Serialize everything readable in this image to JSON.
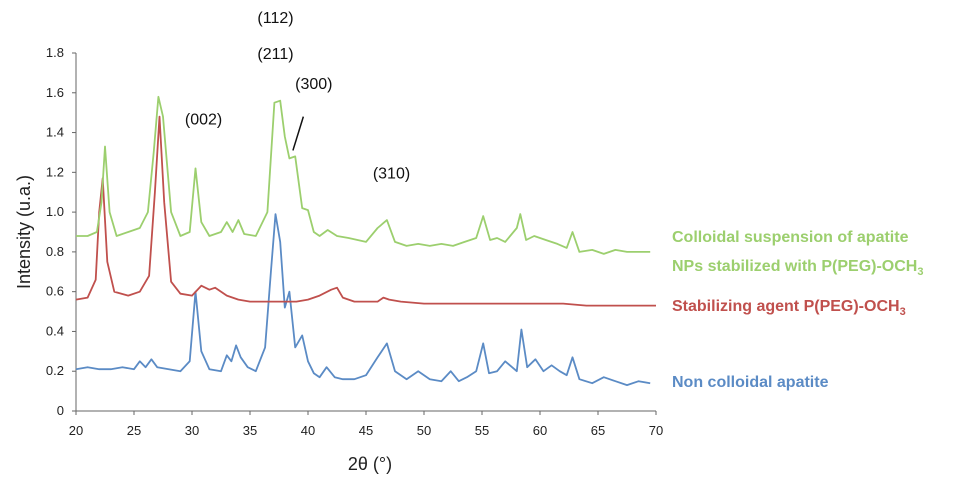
{
  "chart_data": {
    "type": "line",
    "xlabel": "2θ (°)",
    "ylabel": "Intensity (u.a.)",
    "xlim": [
      20,
      70
    ],
    "ylim": [
      0,
      1.8
    ],
    "xticks": [
      "20",
      "25",
      "30",
      "35",
      "40",
      "45",
      "50",
      "55",
      "60",
      "65",
      "70"
    ],
    "yticks": [
      "0",
      "0.2",
      "0.4",
      "0.6",
      "0.8",
      "1.0",
      "1.2",
      "1.4",
      "1.6",
      "1.8"
    ],
    "grid": false,
    "legend_position": "right",
    "series": [
      {
        "name": "Colloidal suspension of apatite NPs stabilized with P(PEG)-OCH3",
        "label_line1": "Colloidal suspension of apatite",
        "label_line2_prefix": "NPs stabilized with P(PEG)-OCH",
        "label_line2_sub": "3",
        "color": "#9ccf6e",
        "x": [
          20,
          21,
          21.8,
          22.2,
          22.5,
          22.9,
          23.5,
          24.5,
          25.5,
          26.2,
          26.7,
          27.1,
          27.5,
          28.2,
          29,
          29.8,
          30.3,
          30.8,
          31.5,
          32.5,
          33,
          33.5,
          34,
          34.5,
          35.5,
          36.5,
          37.1,
          37.6,
          38,
          38.4,
          38.9,
          39.5,
          40,
          40.5,
          41,
          41.7,
          42.5,
          43.5,
          45,
          46,
          46.8,
          47.5,
          48.5,
          49.5,
          50.5,
          51.5,
          52.5,
          53.5,
          54.5,
          55.1,
          55.7,
          56.3,
          57,
          58,
          58.3,
          58.8,
          59.5,
          60.5,
          61.5,
          62.3,
          62.8,
          63.4,
          64.5,
          65.5,
          66.5,
          67.5,
          68.5,
          69.5
        ],
        "y": [
          0.88,
          0.88,
          0.9,
          1.05,
          1.33,
          1.0,
          0.88,
          0.9,
          0.92,
          1.0,
          1.3,
          1.58,
          1.48,
          1.0,
          0.88,
          0.9,
          1.22,
          0.95,
          0.88,
          0.9,
          0.95,
          0.9,
          0.96,
          0.89,
          0.88,
          1.0,
          1.55,
          1.56,
          1.38,
          1.27,
          1.28,
          1.02,
          1.01,
          0.9,
          0.88,
          0.91,
          0.88,
          0.87,
          0.85,
          0.92,
          0.96,
          0.85,
          0.83,
          0.84,
          0.83,
          0.84,
          0.83,
          0.85,
          0.87,
          0.98,
          0.86,
          0.87,
          0.85,
          0.92,
          0.99,
          0.86,
          0.88,
          0.86,
          0.84,
          0.82,
          0.9,
          0.8,
          0.81,
          0.79,
          0.81,
          0.8,
          0.8,
          0.8
        ]
      },
      {
        "name": "Stabilizing agent P(PEG)-OCH3",
        "label_prefix": "Stabilizing agent P(PEG)-OCH",
        "label_sub": "3",
        "color": "#c0504d",
        "x": [
          20,
          21,
          21.7,
          22,
          22.3,
          22.7,
          23.3,
          24.5,
          25.5,
          26.3,
          26.8,
          27.2,
          27.6,
          28.2,
          29,
          30,
          30.8,
          31.5,
          32,
          33,
          34,
          35,
          36,
          37,
          38,
          39,
          40,
          41,
          42,
          42.5,
          43,
          44,
          45,
          46,
          46.5,
          47,
          48,
          50,
          52,
          54,
          56,
          58,
          60,
          62,
          64,
          66,
          68,
          70
        ],
        "y": [
          0.56,
          0.57,
          0.66,
          1.0,
          1.17,
          0.75,
          0.6,
          0.58,
          0.6,
          0.68,
          1.1,
          1.48,
          1.05,
          0.65,
          0.59,
          0.58,
          0.63,
          0.61,
          0.62,
          0.58,
          0.56,
          0.55,
          0.55,
          0.55,
          0.55,
          0.55,
          0.56,
          0.58,
          0.61,
          0.62,
          0.57,
          0.55,
          0.55,
          0.55,
          0.57,
          0.56,
          0.55,
          0.54,
          0.54,
          0.54,
          0.54,
          0.54,
          0.54,
          0.54,
          0.53,
          0.53,
          0.53,
          0.53
        ]
      },
      {
        "name": "Non colloidal apatite",
        "label": "Non colloidal apatite",
        "color": "#5b8bc5",
        "x": [
          20,
          21,
          22,
          23,
          24,
          25,
          25.5,
          26,
          26.5,
          27,
          28,
          29,
          29.8,
          30.3,
          30.8,
          31.5,
          32.5,
          33,
          33.4,
          33.8,
          34.2,
          34.8,
          35.5,
          36.3,
          36.8,
          37.2,
          37.6,
          38,
          38.4,
          38.9,
          39.5,
          40,
          40.5,
          41,
          41.6,
          42.3,
          43,
          44,
          45,
          46,
          46.8,
          47.5,
          48.5,
          49.5,
          50.5,
          51.5,
          52.3,
          53,
          53.7,
          54.5,
          55.1,
          55.6,
          56.3,
          57,
          58,
          58.4,
          58.9,
          59.6,
          60.3,
          61,
          61.7,
          62.3,
          62.8,
          63.4,
          64.5,
          65.5,
          66.5,
          67.5,
          68.5,
          69.5
        ],
        "y": [
          0.21,
          0.22,
          0.21,
          0.21,
          0.22,
          0.21,
          0.25,
          0.22,
          0.26,
          0.22,
          0.21,
          0.2,
          0.25,
          0.6,
          0.3,
          0.21,
          0.2,
          0.28,
          0.25,
          0.33,
          0.27,
          0.22,
          0.2,
          0.32,
          0.7,
          0.99,
          0.85,
          0.52,
          0.6,
          0.32,
          0.38,
          0.25,
          0.19,
          0.17,
          0.22,
          0.17,
          0.16,
          0.16,
          0.18,
          0.27,
          0.34,
          0.2,
          0.16,
          0.2,
          0.16,
          0.15,
          0.2,
          0.15,
          0.17,
          0.2,
          0.34,
          0.19,
          0.2,
          0.25,
          0.2,
          0.41,
          0.22,
          0.26,
          0.2,
          0.23,
          0.2,
          0.18,
          0.27,
          0.16,
          0.14,
          0.17,
          0.15,
          0.13,
          0.15,
          0.14
        ]
      }
    ],
    "annotations": [
      {
        "text": "(112)",
        "x": 37.2,
        "y": 1.95
      },
      {
        "text": "(211)",
        "x": 37.2,
        "y": 1.77
      },
      {
        "text": "(300)",
        "x": 40.5,
        "y": 1.62
      },
      {
        "text": "(002)",
        "x": 31.0,
        "y": 1.44
      },
      {
        "text": "(310)",
        "x": 47.2,
        "y": 1.17
      }
    ],
    "leader_line": {
      "x1": 39.6,
      "y1": 1.48,
      "x2": 38.7,
      "y2": 1.31
    }
  }
}
